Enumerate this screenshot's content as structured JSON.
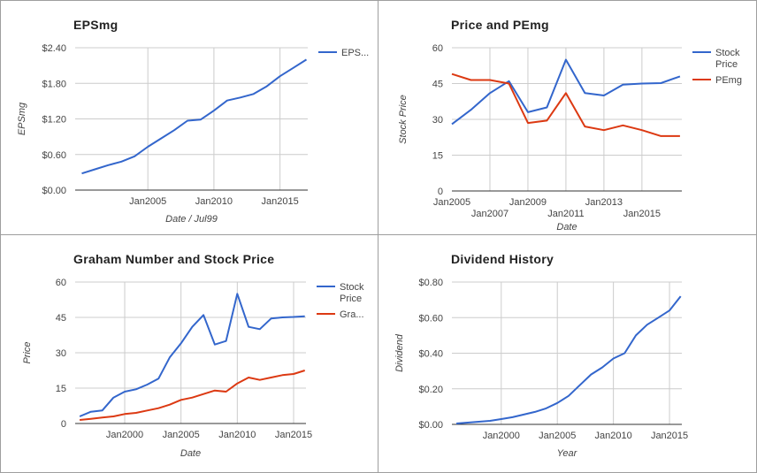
{
  "colors": {
    "blue": "#3366cc",
    "red": "#dc3912",
    "grid": "#cccccc",
    "axis": "#333333"
  },
  "chart_data": [
    {
      "type": "line",
      "title": "EPSmg",
      "xlabel": "Date / Jul99",
      "ylabel": "EPSmg",
      "ylim": [
        0,
        2.4
      ],
      "yticks": [
        "$0.00",
        "$0.60",
        "$1.20",
        "$1.80",
        "$2.40"
      ],
      "xticks": [
        "Jan2005",
        "Jan2010",
        "Jan2015"
      ],
      "grid": true,
      "legend_position": "right",
      "series": [
        {
          "name": "EPS...",
          "x": [
            2000,
            2001,
            2002,
            2003,
            2004,
            2005,
            2006,
            2007,
            2008,
            2009,
            2010,
            2011,
            2012,
            2013,
            2014,
            2015,
            2016,
            2017
          ],
          "values": [
            0.28,
            0.35,
            0.42,
            0.48,
            0.57,
            0.73,
            0.87,
            1.01,
            1.17,
            1.19,
            1.34,
            1.51,
            1.56,
            1.62,
            1.75,
            1.92,
            2.06,
            2.2
          ]
        }
      ]
    },
    {
      "type": "line",
      "title": "Price and PEmg",
      "xlabel": "Date",
      "ylabel": "Stock Price",
      "ylim": [
        0,
        60
      ],
      "yticks": [
        "0",
        "15",
        "30",
        "45",
        "60"
      ],
      "xticks": [
        "Jan2005",
        "Jan2007",
        "Jan2009",
        "Jan2011",
        "Jan2013",
        "Jan2015"
      ],
      "grid": true,
      "legend_position": "right",
      "series": [
        {
          "name": "Stock Price",
          "x": [
            2005,
            2006,
            2007,
            2008,
            2009,
            2010,
            2011,
            2012,
            2013,
            2014,
            2015,
            2016,
            2017
          ],
          "values": [
            28,
            34,
            41,
            46,
            33,
            35,
            55,
            41,
            40,
            44.5,
            45,
            45.2,
            48
          ]
        },
        {
          "name": "PEmg",
          "x": [
            2005,
            2006,
            2007,
            2008,
            2009,
            2010,
            2011,
            2012,
            2013,
            2014,
            2015,
            2016,
            2017
          ],
          "values": [
            49,
            46.5,
            46.5,
            45,
            28.5,
            29.5,
            41,
            27,
            25.5,
            27.5,
            25.5,
            23,
            23
          ]
        }
      ]
    },
    {
      "type": "line",
      "title": "Graham Number and Stock Price",
      "xlabel": "Date",
      "ylabel": "Price",
      "ylim": [
        0,
        60
      ],
      "yticks": [
        "0",
        "15",
        "30",
        "45",
        "60"
      ],
      "xticks": [
        "Jan2000",
        "Jan2005",
        "Jan2010",
        "Jan2015"
      ],
      "grid": true,
      "legend_position": "right",
      "series": [
        {
          "name": "Stock Price",
          "x": [
            1996,
            1997,
            1998,
            1999,
            2000,
            2001,
            2002,
            2003,
            2004,
            2005,
            2006,
            2007,
            2008,
            2009,
            2010,
            2011,
            2012,
            2013,
            2014,
            2015,
            2016
          ],
          "values": [
            3,
            5,
            5.5,
            11,
            13.5,
            14.5,
            16.5,
            19,
            28,
            34,
            41,
            46,
            33.5,
            35,
            55,
            41,
            40,
            44.5,
            45,
            45.2,
            45.5
          ]
        },
        {
          "name": "Gra...",
          "x": [
            1996,
            1997,
            1998,
            1999,
            2000,
            2001,
            2002,
            2003,
            2004,
            2005,
            2006,
            2007,
            2008,
            2009,
            2010,
            2011,
            2012,
            2013,
            2014,
            2015,
            2016
          ],
          "values": [
            1.5,
            2,
            2.5,
            3,
            4,
            4.5,
            5.5,
            6.5,
            8,
            10,
            11,
            12.5,
            14,
            13.5,
            17,
            19.5,
            18.5,
            19.5,
            20.5,
            21,
            22.5
          ]
        }
      ]
    },
    {
      "type": "line",
      "title": "Dividend History",
      "xlabel": "Year",
      "ylabel": "Dividend",
      "ylim": [
        0,
        0.8
      ],
      "yticks": [
        "$0.00",
        "$0.20",
        "$0.40",
        "$0.60",
        "$0.80"
      ],
      "xticks": [
        "Jan2000",
        "Jan2005",
        "Jan2010",
        "Jan2015"
      ],
      "grid": true,
      "legend_position": "none",
      "series": [
        {
          "name": "",
          "x": [
            1996,
            1997,
            1998,
            1999,
            2000,
            2001,
            2002,
            2003,
            2004,
            2005,
            2006,
            2007,
            2008,
            2009,
            2010,
            2011,
            2012,
            2013,
            2014,
            2015,
            2016
          ],
          "values": [
            0.005,
            0.01,
            0.015,
            0.02,
            0.03,
            0.04,
            0.055,
            0.07,
            0.09,
            0.12,
            0.16,
            0.22,
            0.28,
            0.32,
            0.37,
            0.4,
            0.5,
            0.56,
            0.6,
            0.64,
            0.72
          ]
        }
      ]
    }
  ]
}
